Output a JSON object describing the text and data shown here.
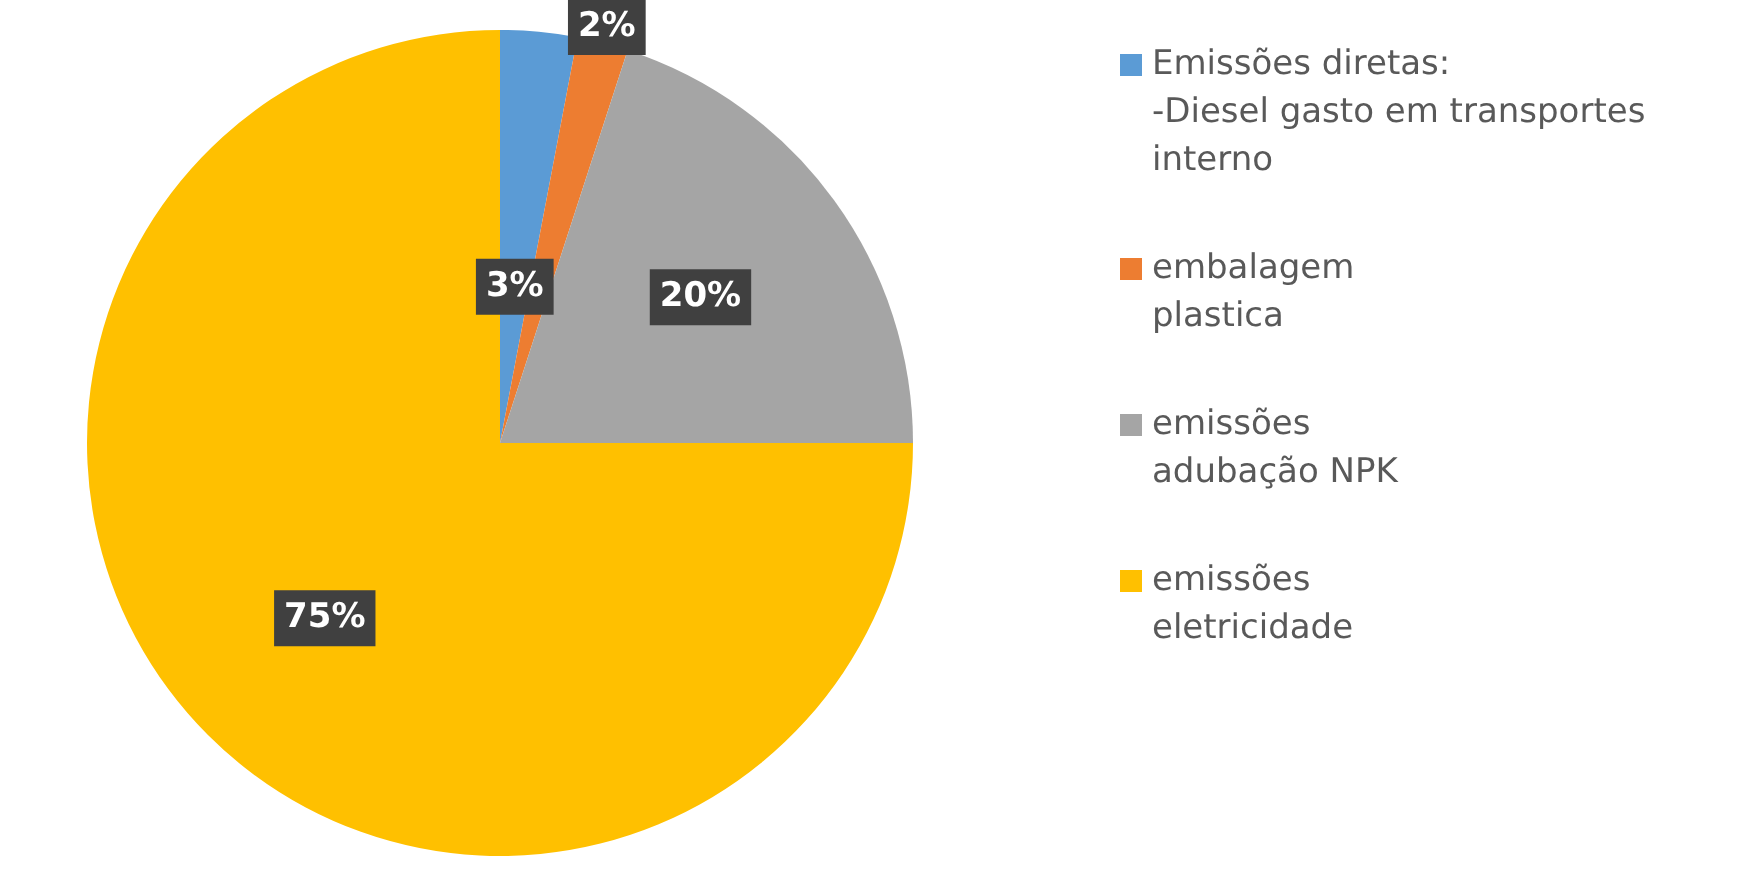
{
  "chart_data": {
    "type": "pie",
    "categories": [
      "Emissões diretas:\n-Diesel gasto em transportes\ninterno",
      "embalagem\nplastica",
      "emissões\nadubação NPK",
      "emissões\neletricidade"
    ],
    "values": [
      3,
      2,
      20,
      75
    ],
    "colors": [
      "#5b9bd5",
      "#ed7d31",
      "#a5a5a5",
      "#ffc000"
    ],
    "value_labels": [
      "3%",
      "2%",
      "20%",
      "75%"
    ],
    "legend": "right"
  }
}
